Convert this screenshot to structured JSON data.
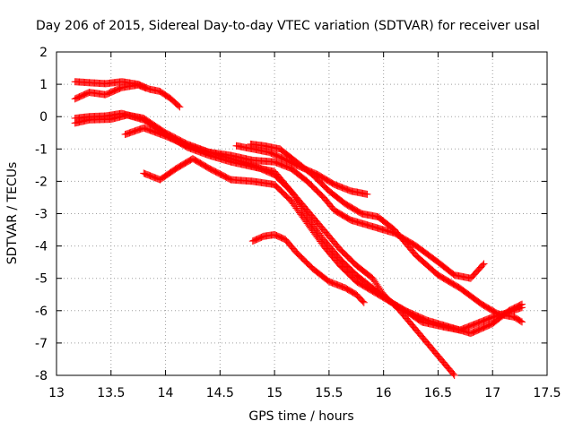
{
  "chart_data": {
    "type": "scatter",
    "title": "Day 206 of 2015, Sidereal Day-to-day VTEC variation (SDTVAR) for receiver usal",
    "xlabel": "GPS time / hours",
    "ylabel": "SDTVAR / TECUs",
    "xlim": [
      13,
      17.5
    ],
    "ylim": [
      -8,
      2
    ],
    "xticks": [
      "13",
      "13.5",
      "14",
      "14.5",
      "15",
      "15.5",
      "16",
      "16.5",
      "17",
      "17.5"
    ],
    "yticks": [
      "2",
      "1",
      "0",
      "-1",
      "-2",
      "-3",
      "-4",
      "-5",
      "-6",
      "-7",
      "-8"
    ],
    "grid": true,
    "marker": "plus",
    "color": "#ff0000",
    "series": [
      {
        "name": "s1",
        "points": [
          [
            13.17,
            1.08
          ],
          [
            13.3,
            1.05
          ],
          [
            13.45,
            1.02
          ],
          [
            13.6,
            1.08
          ],
          [
            13.75,
            1.0
          ],
          [
            13.85,
            0.85
          ],
          [
            13.95,
            0.78
          ],
          [
            14.05,
            0.55
          ],
          [
            14.13,
            0.3
          ]
        ]
      },
      {
        "name": "s2",
        "points": [
          [
            13.17,
            0.55
          ],
          [
            13.3,
            0.75
          ],
          [
            13.45,
            0.68
          ],
          [
            13.6,
            0.9
          ],
          [
            13.75,
            0.98
          ],
          [
            13.82,
            0.88
          ]
        ]
      },
      {
        "name": "s3",
        "points": [
          [
            13.17,
            -0.2
          ],
          [
            13.3,
            -0.1
          ],
          [
            13.5,
            -0.08
          ],
          [
            13.65,
            0.05
          ],
          [
            13.8,
            -0.05
          ],
          [
            14.0,
            -0.5
          ],
          [
            14.2,
            -0.85
          ],
          [
            14.4,
            -1.1
          ],
          [
            14.6,
            -1.3
          ],
          [
            14.8,
            -1.5
          ],
          [
            15.0,
            -1.8
          ],
          [
            15.15,
            -2.3
          ],
          [
            15.3,
            -2.9
          ],
          [
            15.45,
            -3.5
          ],
          [
            15.6,
            -4.1
          ],
          [
            15.75,
            -4.6
          ],
          [
            15.9,
            -5.0
          ],
          [
            16.0,
            -5.5
          ],
          [
            16.15,
            -6.0
          ],
          [
            16.3,
            -6.6
          ],
          [
            16.45,
            -7.2
          ],
          [
            16.6,
            -7.8
          ],
          [
            16.65,
            -8.0
          ]
        ]
      },
      {
        "name": "s4",
        "points": [
          [
            13.17,
            -0.05
          ],
          [
            13.3,
            0.0
          ],
          [
            13.45,
            0.02
          ],
          [
            13.6,
            0.1
          ],
          [
            13.8,
            -0.1
          ],
          [
            14.0,
            -0.55
          ],
          [
            14.2,
            -0.95
          ],
          [
            14.4,
            -1.2
          ],
          [
            14.6,
            -1.4
          ],
          [
            14.8,
            -1.55
          ],
          [
            15.0,
            -1.7
          ],
          [
            15.15,
            -2.3
          ],
          [
            15.3,
            -3.1
          ],
          [
            15.45,
            -3.8
          ],
          [
            15.6,
            -4.4
          ],
          [
            15.75,
            -4.9
          ],
          [
            15.9,
            -5.3
          ],
          [
            16.05,
            -5.7
          ],
          [
            16.2,
            -6.0
          ],
          [
            16.4,
            -6.3
          ],
          [
            16.6,
            -6.5
          ],
          [
            16.8,
            -6.7
          ],
          [
            17.0,
            -6.4
          ],
          [
            17.15,
            -6.0
          ],
          [
            17.27,
            -5.8
          ]
        ]
      },
      {
        "name": "s5",
        "points": [
          [
            13.63,
            -0.55
          ],
          [
            13.8,
            -0.35
          ],
          [
            14.0,
            -0.6
          ],
          [
            14.2,
            -0.9
          ],
          [
            14.4,
            -1.1
          ],
          [
            14.6,
            -1.2
          ],
          [
            14.8,
            -1.35
          ],
          [
            15.0,
            -1.4
          ],
          [
            15.15,
            -1.6
          ],
          [
            15.3,
            -2.0
          ],
          [
            15.45,
            -2.5
          ],
          [
            15.55,
            -2.9
          ],
          [
            15.7,
            -3.2
          ],
          [
            15.9,
            -3.4
          ],
          [
            16.1,
            -3.6
          ],
          [
            16.3,
            -4.0
          ],
          [
            16.5,
            -4.5
          ],
          [
            16.65,
            -4.9
          ],
          [
            16.8,
            -5.0
          ],
          [
            16.92,
            -4.55
          ]
        ]
      },
      {
        "name": "s6",
        "points": [
          [
            14.65,
            -0.9
          ],
          [
            14.8,
            -1.0
          ],
          [
            14.95,
            -1.1
          ],
          [
            15.05,
            -1.25
          ],
          [
            15.2,
            -1.5
          ],
          [
            15.4,
            -1.8
          ],
          [
            15.55,
            -2.1
          ],
          [
            15.7,
            -2.3
          ],
          [
            15.85,
            -2.4
          ]
        ]
      },
      {
        "name": "s7",
        "points": [
          [
            14.78,
            -0.85
          ],
          [
            14.9,
            -0.9
          ],
          [
            15.05,
            -1.0
          ],
          [
            15.2,
            -1.4
          ],
          [
            15.35,
            -1.8
          ],
          [
            15.5,
            -2.3
          ],
          [
            15.65,
            -2.7
          ],
          [
            15.8,
            -3.0
          ],
          [
            15.95,
            -3.1
          ],
          [
            16.1,
            -3.5
          ],
          [
            16.3,
            -4.3
          ],
          [
            16.5,
            -4.9
          ],
          [
            16.7,
            -5.3
          ],
          [
            16.9,
            -5.8
          ],
          [
            17.05,
            -6.1
          ],
          [
            17.2,
            -6.2
          ],
          [
            17.27,
            -6.35
          ]
        ]
      },
      {
        "name": "s8",
        "points": [
          [
            13.8,
            -1.75
          ],
          [
            13.95,
            -1.95
          ],
          [
            14.1,
            -1.6
          ],
          [
            14.25,
            -1.3
          ],
          [
            14.4,
            -1.6
          ],
          [
            14.6,
            -1.95
          ],
          [
            14.8,
            -2.0
          ],
          [
            15.0,
            -2.1
          ],
          [
            15.15,
            -2.6
          ],
          [
            15.3,
            -3.3
          ],
          [
            15.45,
            -4.0
          ],
          [
            15.6,
            -4.6
          ],
          [
            15.75,
            -5.1
          ],
          [
            15.9,
            -5.4
          ],
          [
            16.05,
            -5.7
          ],
          [
            16.2,
            -6.0
          ],
          [
            16.35,
            -6.35
          ],
          [
            16.55,
            -6.5
          ],
          [
            16.7,
            -6.6
          ],
          [
            16.85,
            -6.4
          ],
          [
            17.0,
            -6.2
          ],
          [
            17.1,
            -6.1
          ],
          [
            17.27,
            -5.9
          ]
        ]
      },
      {
        "name": "s9",
        "points": [
          [
            14.8,
            -3.85
          ],
          [
            14.9,
            -3.7
          ],
          [
            15.0,
            -3.65
          ],
          [
            15.1,
            -3.8
          ],
          [
            15.2,
            -4.2
          ],
          [
            15.35,
            -4.7
          ],
          [
            15.5,
            -5.1
          ],
          [
            15.65,
            -5.3
          ],
          [
            15.75,
            -5.5
          ],
          [
            15.82,
            -5.75
          ]
        ]
      }
    ]
  }
}
